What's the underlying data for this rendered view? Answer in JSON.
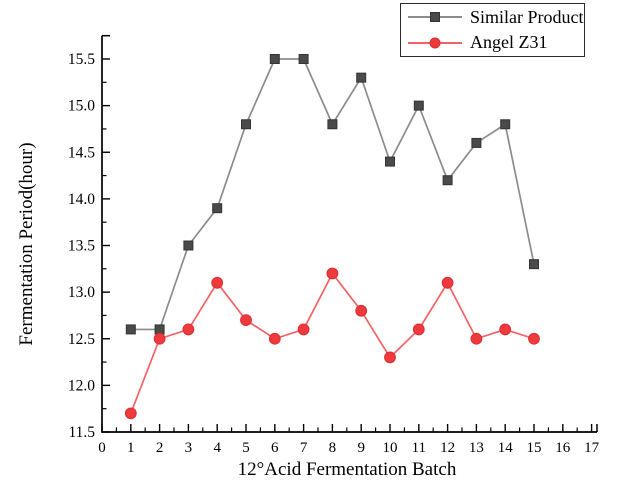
{
  "figure": {
    "background": "#ffffff",
    "axis_color": "#000000"
  },
  "axes": {
    "x": {
      "min": 0,
      "max": 17,
      "major_step": 1,
      "minor_step": 0.5,
      "tick_labels": [
        "0",
        "1",
        "2",
        "3",
        "4",
        "5",
        "6",
        "7",
        "8",
        "9",
        "10",
        "11",
        "12",
        "13",
        "14",
        "15",
        "16",
        "17"
      ]
    },
    "y": {
      "min": 11.5,
      "max": 15.75,
      "major_step": 0.5,
      "minor_step": 0.25,
      "tick_labels": [
        "11.5",
        "12.0",
        "12.5",
        "13.0",
        "13.5",
        "14.0",
        "14.5",
        "15.0",
        "15.5"
      ]
    }
  },
  "chart_data": {
    "type": "line",
    "title": "",
    "xlabel": "12°Acid Fermentation Batch",
    "ylabel": "Fermentation Period(hour)",
    "xlim": [
      0,
      17
    ],
    "ylim": [
      11.5,
      15.75
    ],
    "grid": false,
    "legend_position": "top-right",
    "x": [
      1,
      2,
      3,
      4,
      5,
      6,
      7,
      8,
      9,
      10,
      11,
      12,
      13,
      14,
      15
    ],
    "series": [
      {
        "name": "Similar Product",
        "marker": "square",
        "line_color": "#8c8c8c",
        "marker_color": "#4a4a4a",
        "values": [
          12.6,
          12.6,
          13.5,
          13.9,
          14.8,
          15.5,
          15.5,
          14.8,
          15.3,
          14.4,
          15.0,
          14.2,
          14.6,
          14.8,
          13.3
        ]
      },
      {
        "name": "Angel Z31",
        "marker": "circle",
        "line_color": "#f26264",
        "marker_color": "#ee3a3c",
        "values": [
          11.7,
          12.5,
          12.6,
          13.1,
          12.7,
          12.5,
          12.6,
          13.2,
          12.8,
          12.3,
          12.6,
          13.1,
          12.5,
          12.6,
          12.5
        ]
      }
    ]
  }
}
